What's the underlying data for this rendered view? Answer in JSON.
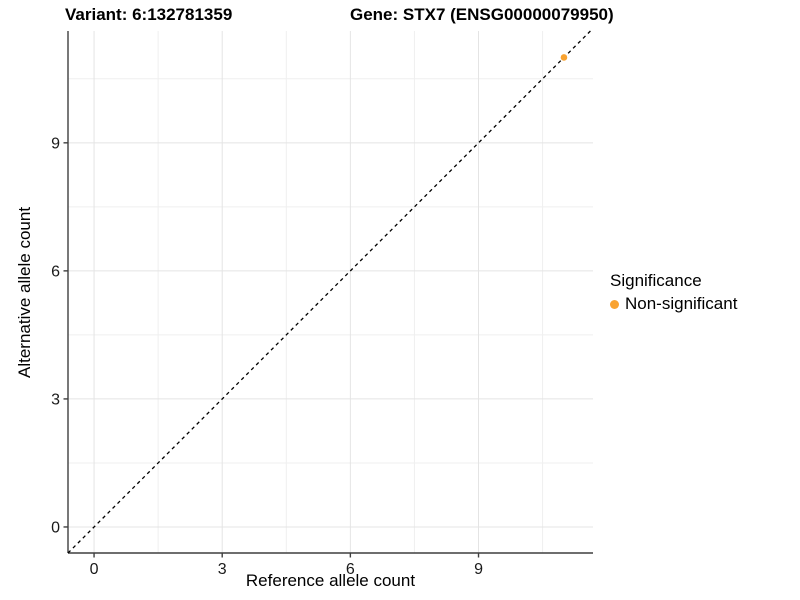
{
  "chart_data": {
    "type": "scatter",
    "title_left": "Variant: 6:132781359",
    "title_right": "Gene: STX7 (ENSG00000079950)",
    "xlabel": "Reference allele count",
    "ylabel": "Alternative allele count",
    "xlim": [
      -0.61,
      11.68
    ],
    "ylim": [
      -0.61,
      11.62
    ],
    "xticks": [
      0,
      3,
      6,
      9
    ],
    "yticks": [
      0,
      3,
      6,
      9
    ],
    "minor_xticks": [
      1.5,
      4.5,
      7.5,
      10.5
    ],
    "minor_yticks": [
      1.5,
      4.5,
      7.5,
      10.5
    ],
    "grid": "major+minor",
    "points": [
      {
        "x": 11,
        "y": 11,
        "series": "Non-significant"
      }
    ],
    "reference_line": {
      "type": "identity",
      "intercept": 0,
      "slope": 1,
      "style": "dashed"
    },
    "series": [
      {
        "name": "Non-significant",
        "color": "#F9A331"
      }
    ],
    "legend": {
      "title": "Significance",
      "position": "right",
      "items": [
        {
          "label": "Non-significant",
          "color": "#F9A331"
        }
      ]
    },
    "colors": {
      "point": "#F9A331",
      "grid_major": "#E4E4E4",
      "grid_minor": "#EFEFEF",
      "axis": "#3F3F3F",
      "tick_text": "#1A1A1A",
      "ref_line": "#000000"
    }
  }
}
